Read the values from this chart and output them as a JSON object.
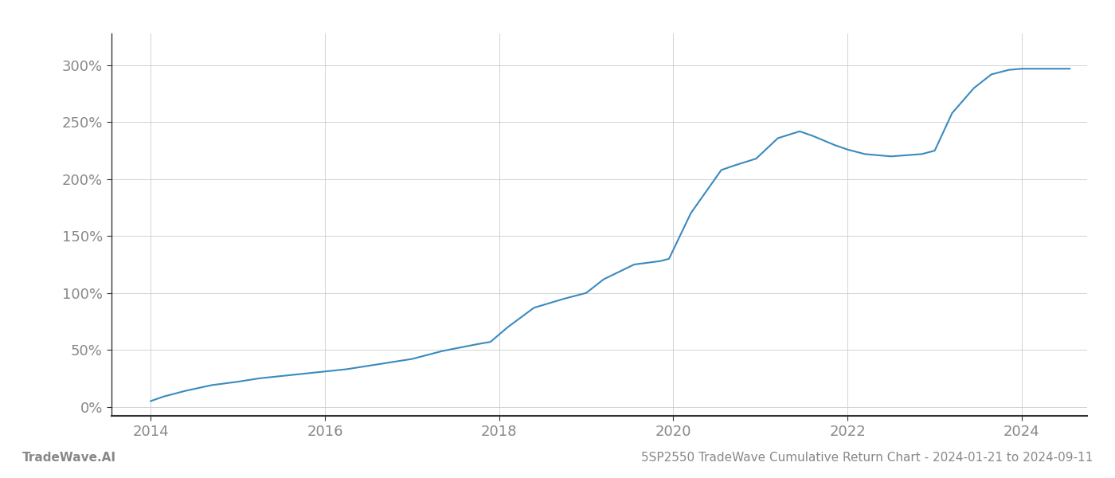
{
  "title": "5SP2550 TradeWave Cumulative Return Chart - 2024-01-21 to 2024-09-11",
  "left_label": "TradeWave.AI",
  "line_color": "#3a8abf",
  "background_color": "#ffffff",
  "grid_color": "#cccccc",
  "x_values": [
    2014.0,
    2014.15,
    2014.4,
    2014.7,
    2015.0,
    2015.25,
    2015.5,
    2015.75,
    2016.0,
    2016.25,
    2016.5,
    2016.75,
    2017.0,
    2017.15,
    2017.35,
    2017.55,
    2017.75,
    2017.9,
    2018.1,
    2018.4,
    2018.75,
    2019.0,
    2019.2,
    2019.55,
    2019.85,
    2019.95,
    2020.2,
    2020.55,
    2020.7,
    2020.95,
    2021.2,
    2021.45,
    2021.6,
    2021.85,
    2022.0,
    2022.2,
    2022.5,
    2022.85,
    2023.0,
    2023.2,
    2023.45,
    2023.65,
    2023.85,
    2024.0,
    2024.15,
    2024.55
  ],
  "y_values": [
    5,
    9,
    14,
    19,
    22,
    25,
    27,
    29,
    31,
    33,
    36,
    39,
    42,
    45,
    49,
    52,
    55,
    57,
    70,
    87,
    95,
    100,
    112,
    125,
    128,
    130,
    170,
    208,
    212,
    218,
    236,
    242,
    238,
    230,
    226,
    222,
    220,
    222,
    225,
    258,
    280,
    292,
    296,
    297,
    297,
    297
  ],
  "ylim": [
    -8,
    328
  ],
  "yticks": [
    0,
    50,
    100,
    150,
    200,
    250,
    300
  ],
  "xlim": [
    2013.55,
    2024.75
  ],
  "xticks": [
    2014,
    2016,
    2018,
    2020,
    2022,
    2024
  ],
  "line_width": 1.5,
  "tick_fontsize": 13,
  "footer_fontsize": 11,
  "axis_color": "#333333",
  "tick_color": "#888888"
}
